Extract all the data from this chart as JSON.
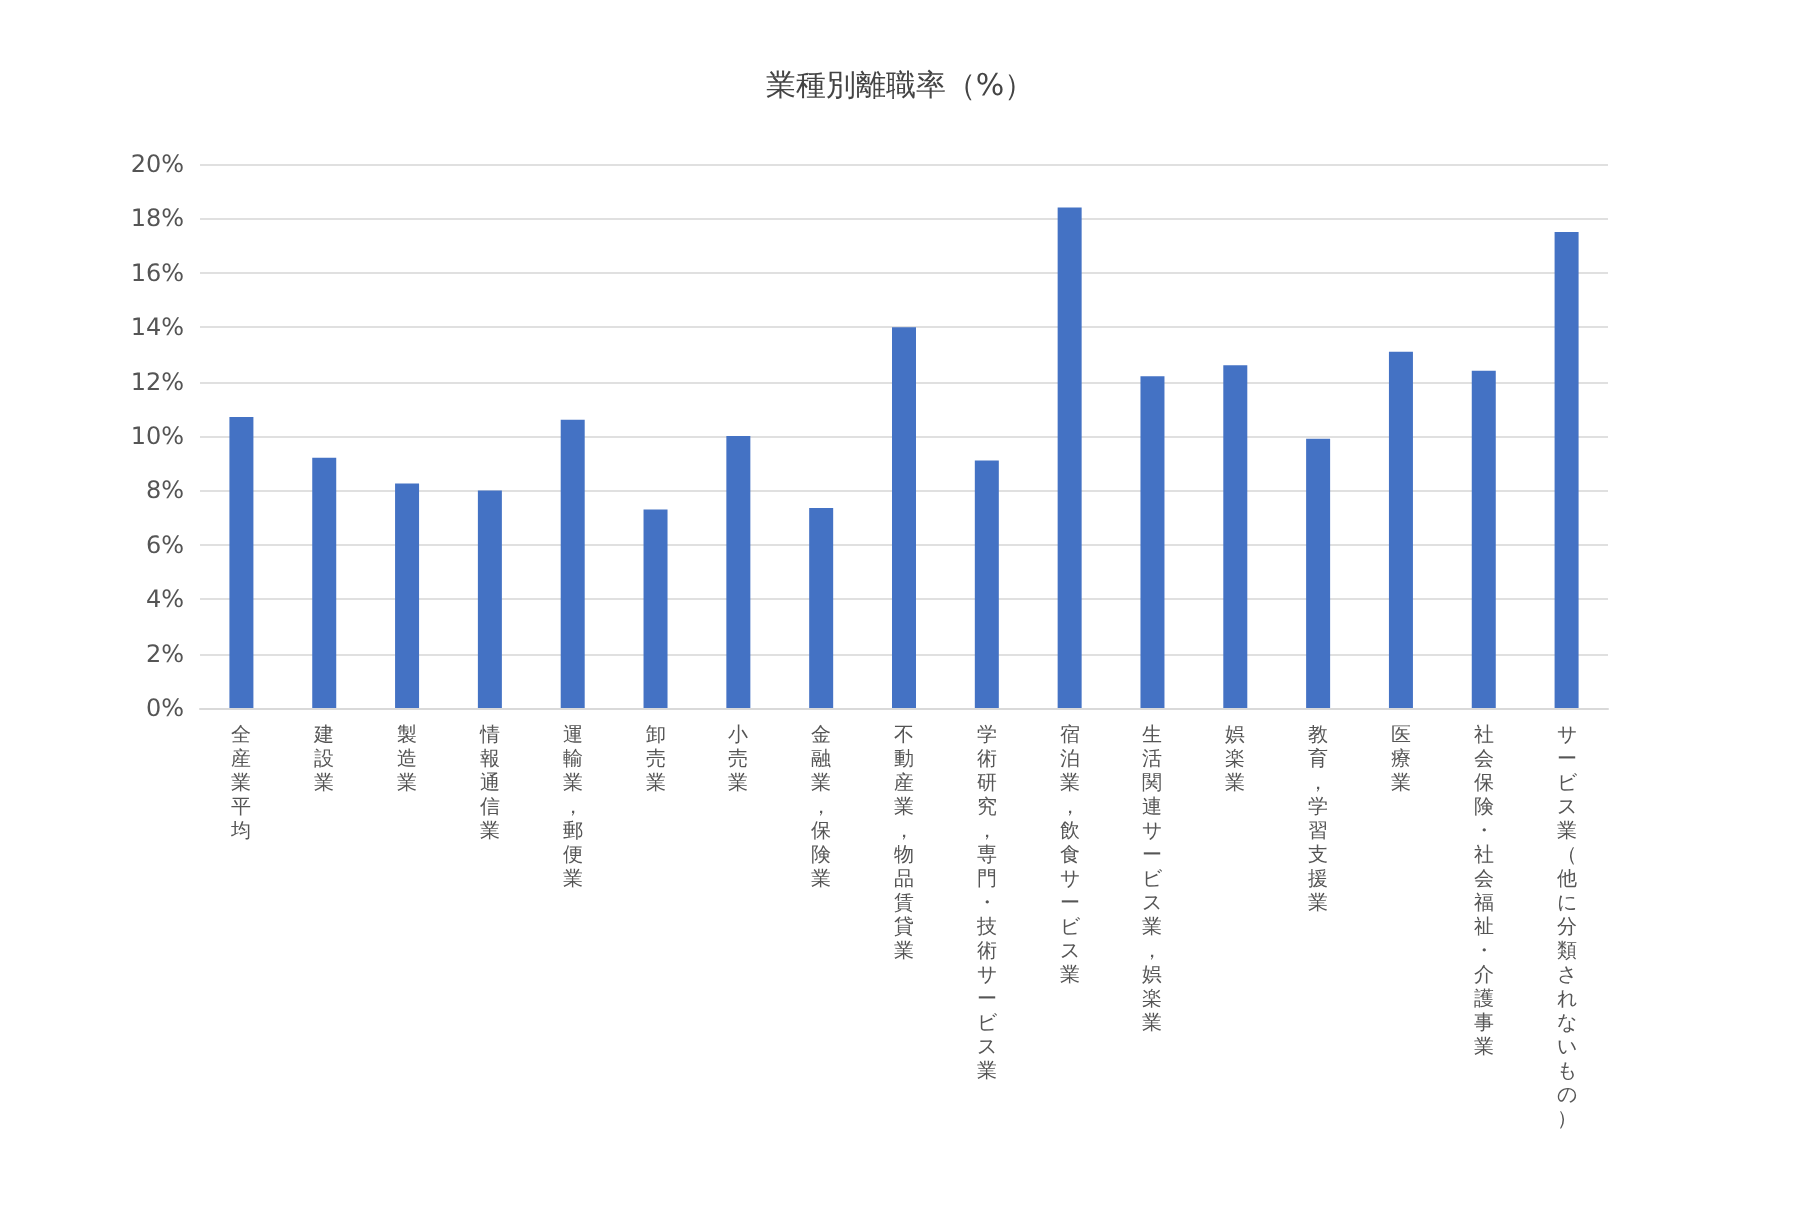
{
  "chart_data": {
    "type": "bar",
    "title": "業種別離職率（%）",
    "categories": [
      "全産業平均",
      "建設業",
      "製造業",
      "情報通信業",
      "運輸業，郵便業",
      "卸売業",
      "小売業",
      "金融業，保険業",
      "不動産業，物品賃貸業",
      "学術研究，専門・技術サービス業",
      "宿泊業，飲食サービス業",
      "生活関連サービス業，娯楽業",
      "娯楽業",
      "教育，学習支援業",
      "医療業",
      "社会保険・社会福祉・介護事業",
      "サービス業（他に分類されないもの）"
    ],
    "values": [
      10.7,
      9.2,
      8.25,
      8.0,
      10.6,
      7.3,
      10.0,
      7.35,
      14.0,
      9.1,
      18.4,
      12.2,
      12.6,
      9.9,
      13.1,
      12.4,
      17.5
    ],
    "color": "#4472c4",
    "ylim": [
      0,
      20
    ],
    "yticks": [
      {
        "value": 0,
        "label": "0%"
      },
      {
        "value": 2,
        "label": "2%"
      },
      {
        "value": 4,
        "label": "4%"
      },
      {
        "value": 6,
        "label": "6%"
      },
      {
        "value": 8,
        "label": "8%"
      },
      {
        "value": 10,
        "label": "10%"
      },
      {
        "value": 12,
        "label": "12%"
      },
      {
        "value": 14,
        "label": "14%"
      },
      {
        "value": 16,
        "label": "16%"
      },
      {
        "value": 18,
        "label": "18%"
      },
      {
        "value": 20,
        "label": "20%"
      }
    ],
    "grid": "y"
  }
}
